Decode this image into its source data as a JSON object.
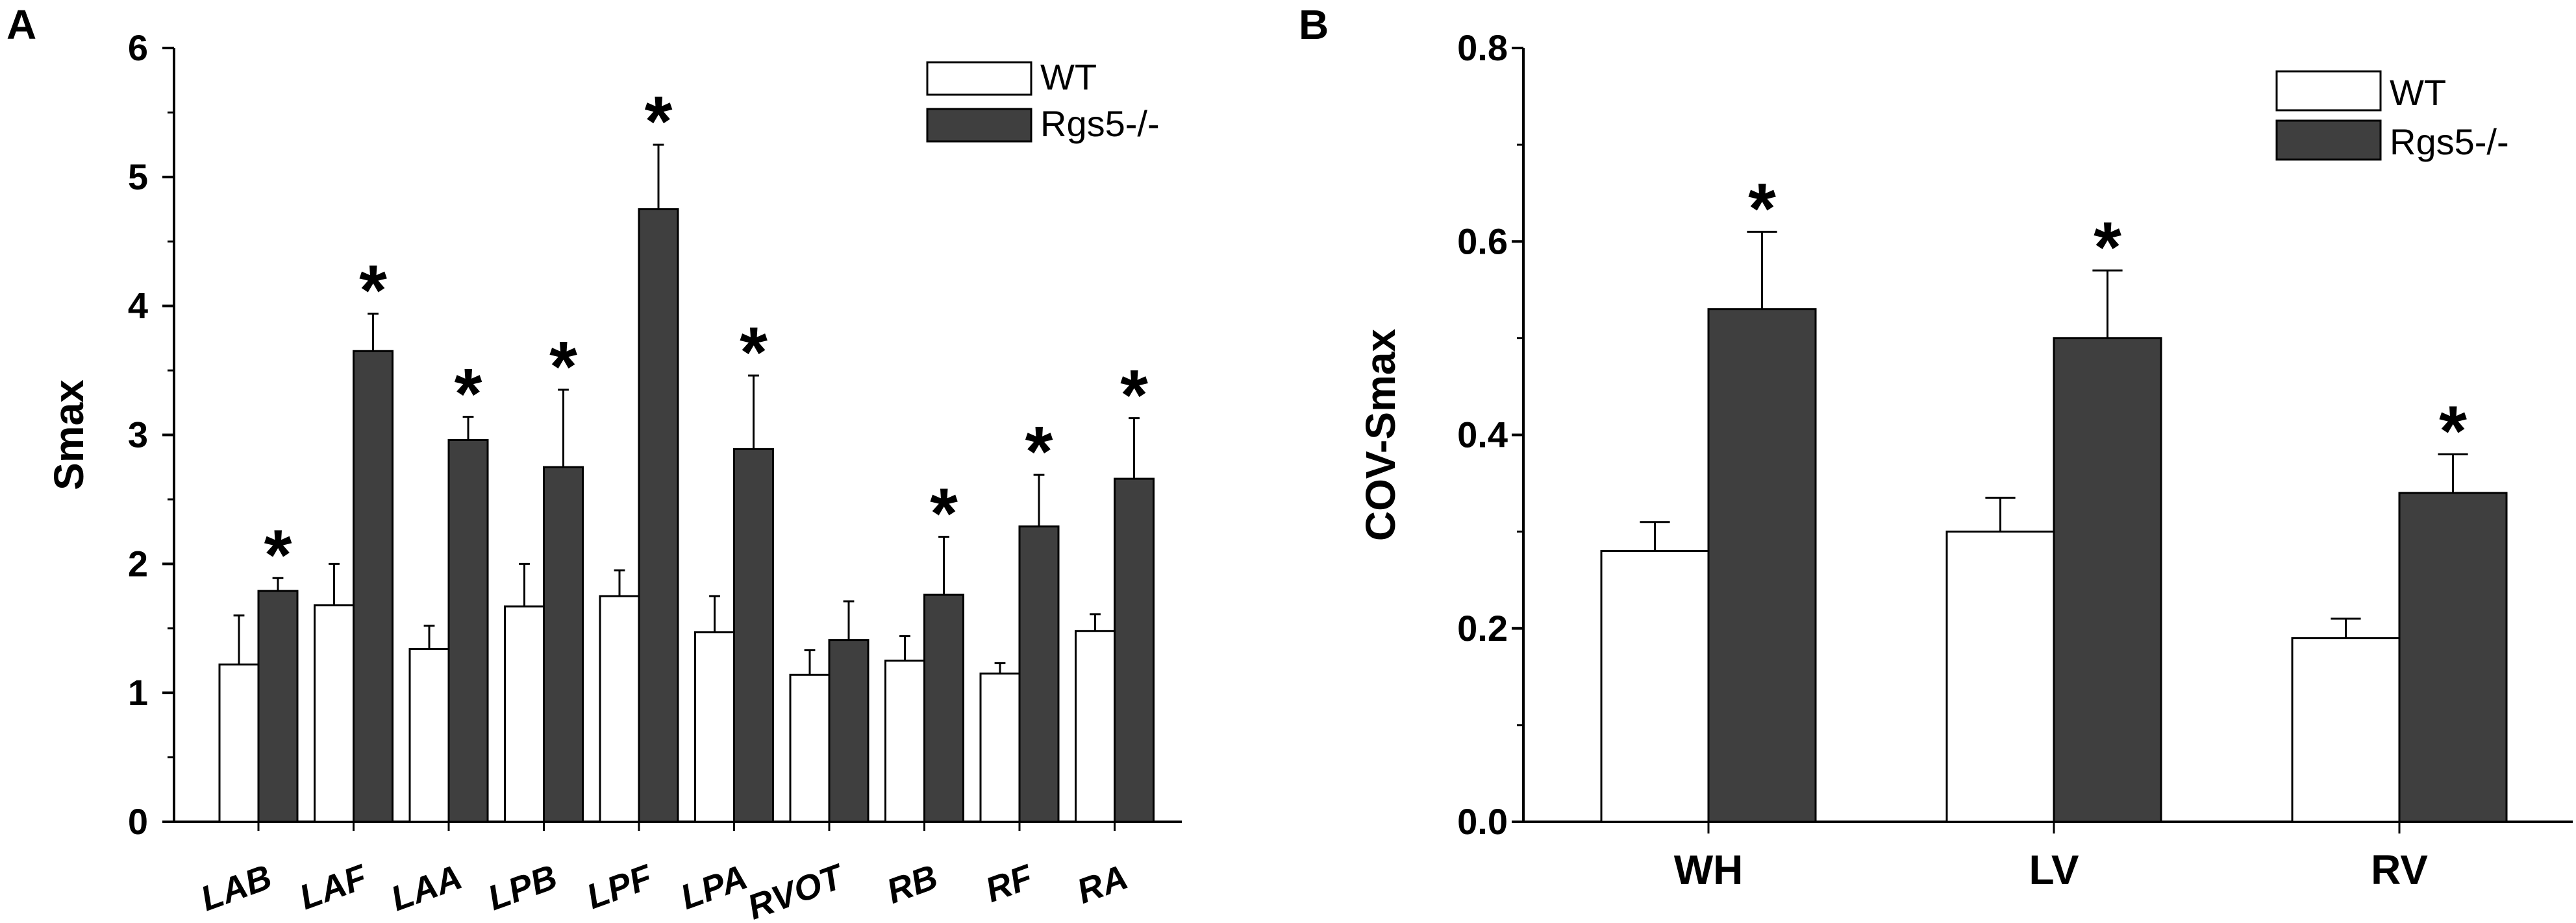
{
  "chart_data": [
    {
      "panel": "A",
      "type": "bar",
      "ylabel": "Smax",
      "xlabel": "",
      "ylim": [
        0,
        6
      ],
      "yticks": [
        0,
        1,
        2,
        3,
        4,
        5,
        6
      ],
      "categories": [
        "LAB",
        "LAF",
        "LAA",
        "LPB",
        "LPF",
        "LPA",
        "RVOT",
        "RB",
        "RF",
        "RA"
      ],
      "series": [
        {
          "name": "WT",
          "color": "#ffffff",
          "values": [
            1.22,
            1.68,
            1.34,
            1.67,
            1.75,
            1.47,
            1.14,
            1.25,
            1.15,
            1.48
          ],
          "errors": [
            0.38,
            0.32,
            0.18,
            0.33,
            0.2,
            0.28,
            0.19,
            0.19,
            0.08,
            0.13
          ]
        },
        {
          "name": "Rgs5-/-",
          "color": "#3f3f3f",
          "values": [
            1.79,
            3.65,
            2.96,
            2.75,
            4.75,
            2.89,
            1.41,
            1.76,
            2.29,
            2.66
          ],
          "errors": [
            0.1,
            0.29,
            0.18,
            0.6,
            0.5,
            0.57,
            0.3,
            0.45,
            0.4,
            0.47
          ]
        }
      ],
      "significance": [
        true,
        true,
        true,
        true,
        true,
        true,
        false,
        true,
        true,
        true
      ],
      "legend": [
        "WT",
        "Rgs5-/-"
      ],
      "legend_position": "top-right",
      "star_symbol": "*"
    },
    {
      "panel": "B",
      "type": "bar",
      "ylabel": "COV-Smax",
      "xlabel": "",
      "ylim": [
        0,
        0.8
      ],
      "yticks": [
        "0.0",
        "0.2",
        "0.4",
        "0.6",
        "0.8"
      ],
      "categories": [
        "WH",
        "LV",
        "RV"
      ],
      "series": [
        {
          "name": "WT",
          "color": "#ffffff",
          "values": [
            0.28,
            0.3,
            0.19
          ],
          "errors": [
            0.03,
            0.035,
            0.02
          ]
        },
        {
          "name": "Rgs5-/-",
          "color": "#3f3f3f",
          "values": [
            0.53,
            0.5,
            0.34
          ],
          "errors": [
            0.08,
            0.07,
            0.04
          ]
        }
      ],
      "significance": [
        true,
        true,
        true
      ],
      "legend": [
        "WT",
        "Rgs5-/-"
      ],
      "legend_position": "top-right",
      "star_symbol": "*"
    }
  ]
}
